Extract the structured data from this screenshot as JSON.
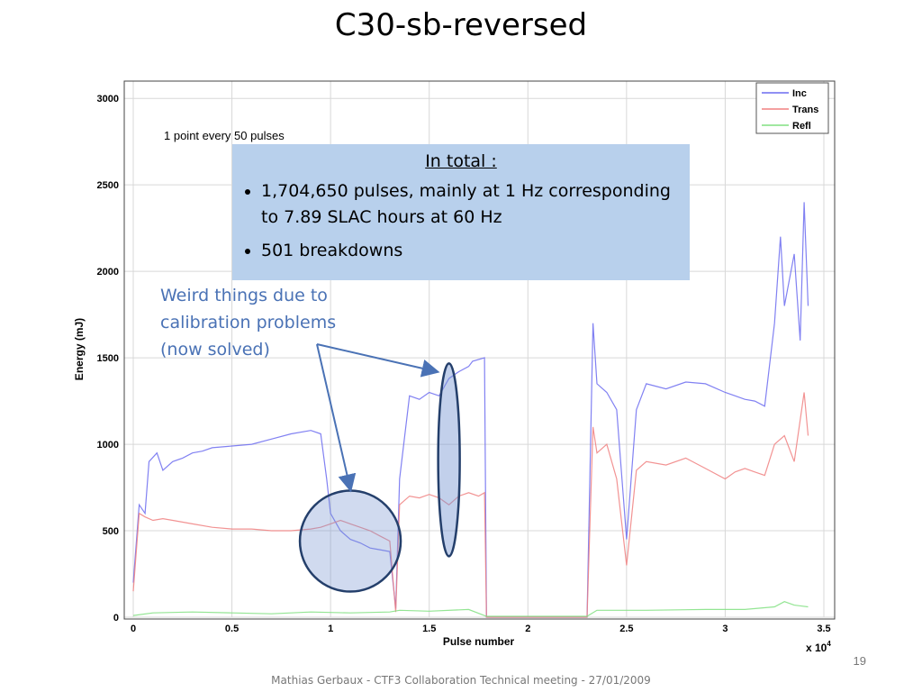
{
  "slide": {
    "title": "C30-sb-reversed",
    "page_number": "19",
    "footer": "Mathias Gerbaux - CTF3 Collaboration Technical meeting - 27/01/2009"
  },
  "annotations": {
    "sampling_note": "1 point every 50 pulses",
    "summary_heading": "In total :",
    "summary_bullets": [
      "1,704,650 pulses, mainly at 1 Hz corresponding  to 7.89 SLAC hours at 60 Hz",
      "501 breakdowns"
    ],
    "weird_note": "Weird things due to calibration problems (now solved)"
  },
  "chart_data": {
    "type": "line",
    "xlabel": "Pulse number",
    "ylabel": "Energy (mJ)",
    "x_multiplier": "x 10",
    "x_multiplier_exp": "4",
    "xlim": [
      0,
      3.5
    ],
    "ylim": [
      0,
      3100
    ],
    "xticks": [
      "0",
      "0.5",
      "1",
      "1.5",
      "2",
      "2.5",
      "3",
      "3.5"
    ],
    "yticks": [
      "0",
      "500",
      "1000",
      "1500",
      "2000",
      "2500",
      "3000"
    ],
    "grid": true,
    "legend_position": "top-right",
    "series": [
      {
        "name": "Inc",
        "color": "#6b6bf0",
        "points": [
          [
            0,
            200
          ],
          [
            0.03,
            650
          ],
          [
            0.06,
            600
          ],
          [
            0.08,
            900
          ],
          [
            0.12,
            950
          ],
          [
            0.15,
            850
          ],
          [
            0.2,
            900
          ],
          [
            0.25,
            920
          ],
          [
            0.3,
            950
          ],
          [
            0.35,
            960
          ],
          [
            0.4,
            980
          ],
          [
            0.5,
            990
          ],
          [
            0.6,
            1000
          ],
          [
            0.7,
            1030
          ],
          [
            0.8,
            1060
          ],
          [
            0.9,
            1080
          ],
          [
            0.95,
            1060
          ],
          [
            0.98,
            800
          ],
          [
            1.0,
            600
          ],
          [
            1.05,
            500
          ],
          [
            1.1,
            450
          ],
          [
            1.15,
            430
          ],
          [
            1.2,
            400
          ],
          [
            1.25,
            390
          ],
          [
            1.3,
            380
          ],
          [
            1.33,
            50
          ],
          [
            1.35,
            800
          ],
          [
            1.4,
            1280
          ],
          [
            1.45,
            1260
          ],
          [
            1.5,
            1300
          ],
          [
            1.55,
            1280
          ],
          [
            1.6,
            1380
          ],
          [
            1.65,
            1420
          ],
          [
            1.7,
            1450
          ],
          [
            1.72,
            1480
          ],
          [
            1.78,
            1500
          ],
          [
            1.79,
            0
          ],
          [
            2.3,
            0
          ],
          [
            2.33,
            1700
          ],
          [
            2.35,
            1350
          ],
          [
            2.4,
            1300
          ],
          [
            2.45,
            1200
          ],
          [
            2.5,
            450
          ],
          [
            2.55,
            1200
          ],
          [
            2.6,
            1350
          ],
          [
            2.7,
            1320
          ],
          [
            2.8,
            1360
          ],
          [
            2.9,
            1350
          ],
          [
            3.0,
            1300
          ],
          [
            3.05,
            1280
          ],
          [
            3.1,
            1260
          ],
          [
            3.15,
            1250
          ],
          [
            3.2,
            1220
          ],
          [
            3.25,
            1700
          ],
          [
            3.28,
            2200
          ],
          [
            3.3,
            1800
          ],
          [
            3.35,
            2100
          ],
          [
            3.38,
            1600
          ],
          [
            3.4,
            2400
          ],
          [
            3.42,
            1800
          ]
        ]
      },
      {
        "name": "Trans",
        "color": "#f08080",
        "points": [
          [
            0,
            150
          ],
          [
            0.03,
            600
          ],
          [
            0.06,
            580
          ],
          [
            0.1,
            560
          ],
          [
            0.15,
            570
          ],
          [
            0.2,
            560
          ],
          [
            0.3,
            540
          ],
          [
            0.4,
            520
          ],
          [
            0.5,
            510
          ],
          [
            0.6,
            510
          ],
          [
            0.7,
            500
          ],
          [
            0.8,
            500
          ],
          [
            0.9,
            510
          ],
          [
            0.95,
            520
          ],
          [
            1.0,
            540
          ],
          [
            1.05,
            560
          ],
          [
            1.1,
            540
          ],
          [
            1.15,
            520
          ],
          [
            1.2,
            500
          ],
          [
            1.25,
            470
          ],
          [
            1.3,
            440
          ],
          [
            1.33,
            30
          ],
          [
            1.35,
            650
          ],
          [
            1.4,
            700
          ],
          [
            1.45,
            690
          ],
          [
            1.5,
            710
          ],
          [
            1.55,
            690
          ],
          [
            1.6,
            650
          ],
          [
            1.65,
            700
          ],
          [
            1.7,
            720
          ],
          [
            1.75,
            700
          ],
          [
            1.78,
            720
          ],
          [
            1.79,
            0
          ],
          [
            2.3,
            0
          ],
          [
            2.33,
            1100
          ],
          [
            2.35,
            950
          ],
          [
            2.4,
            1000
          ],
          [
            2.45,
            800
          ],
          [
            2.5,
            300
          ],
          [
            2.55,
            850
          ],
          [
            2.6,
            900
          ],
          [
            2.7,
            880
          ],
          [
            2.8,
            920
          ],
          [
            2.9,
            860
          ],
          [
            3.0,
            800
          ],
          [
            3.05,
            840
          ],
          [
            3.1,
            860
          ],
          [
            3.15,
            840
          ],
          [
            3.2,
            820
          ],
          [
            3.25,
            1000
          ],
          [
            3.3,
            1050
          ],
          [
            3.35,
            900
          ],
          [
            3.4,
            1300
          ],
          [
            3.42,
            1050
          ]
        ]
      },
      {
        "name": "Refl",
        "color": "#80e080",
        "points": [
          [
            0,
            10
          ],
          [
            0.1,
            25
          ],
          [
            0.3,
            30
          ],
          [
            0.5,
            25
          ],
          [
            0.7,
            20
          ],
          [
            0.9,
            30
          ],
          [
            1.1,
            25
          ],
          [
            1.3,
            30
          ],
          [
            1.35,
            40
          ],
          [
            1.5,
            35
          ],
          [
            1.7,
            45
          ],
          [
            1.79,
            5
          ],
          [
            2.3,
            5
          ],
          [
            2.35,
            40
          ],
          [
            2.6,
            40
          ],
          [
            2.9,
            45
          ],
          [
            3.1,
            45
          ],
          [
            3.25,
            60
          ],
          [
            3.3,
            90
          ],
          [
            3.35,
            70
          ],
          [
            3.42,
            60
          ]
        ]
      }
    ],
    "highlights": [
      {
        "shape": "circle",
        "x_center": 1.1,
        "y_center": 440
      },
      {
        "shape": "ellipse",
        "x_center": 1.6,
        "y_center": 910
      }
    ]
  }
}
